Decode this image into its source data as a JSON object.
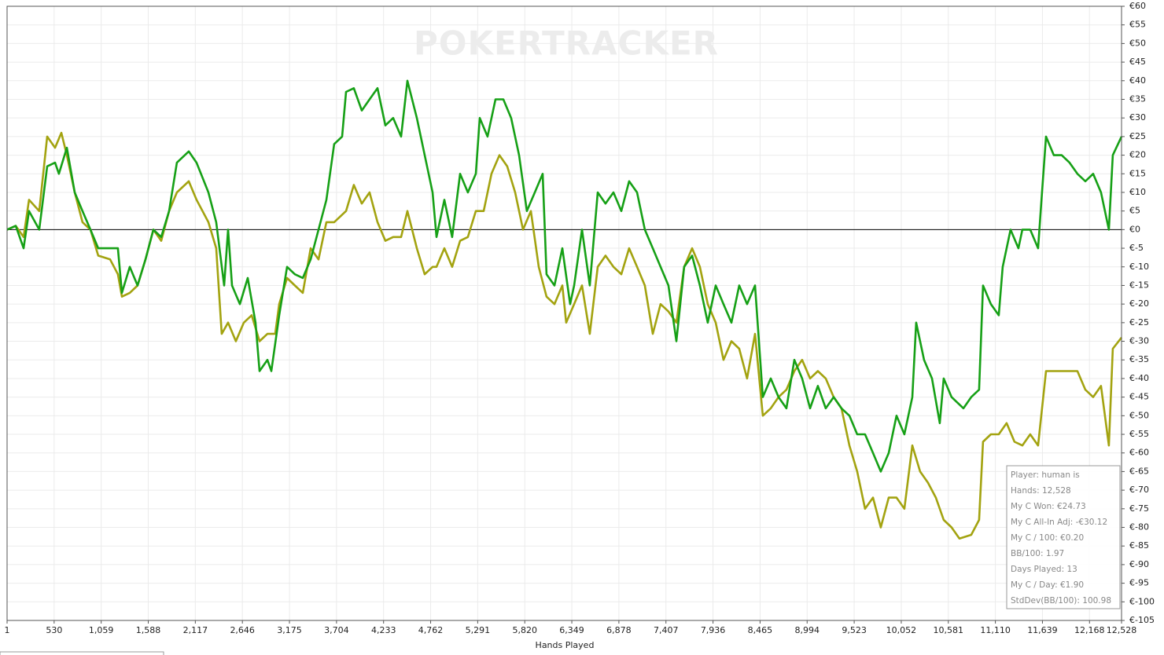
{
  "chart_data": {
    "type": "line",
    "watermark": "POKERTRACKER",
    "x_label": "Hands Played",
    "xlim": [
      1,
      12528
    ],
    "ylim": [
      -105,
      60
    ],
    "grid": true,
    "zero_line": true,
    "xticks": [
      1,
      530,
      {
        "value": 1059,
        "label": "1,059"
      },
      {
        "value": 1588,
        "label": "1,588"
      },
      {
        "value": 2117,
        "label": "2,117"
      },
      {
        "value": 2646,
        "label": "2,646"
      },
      {
        "value": 3175,
        "label": "3,175"
      },
      {
        "value": 3704,
        "label": "3,704"
      },
      {
        "value": 4233,
        "label": "4,233"
      },
      {
        "value": 4762,
        "label": "4,762"
      },
      {
        "value": 5291,
        "label": "5,291"
      },
      {
        "value": 5820,
        "label": "5,820"
      },
      {
        "value": 6349,
        "label": "6,349"
      },
      {
        "value": 6878,
        "label": "6,878"
      },
      {
        "value": 7407,
        "label": "7,407"
      },
      {
        "value": 7936,
        "label": "7,936"
      },
      {
        "value": 8465,
        "label": "8,465"
      },
      {
        "value": 8994,
        "label": "8,994"
      },
      {
        "value": 9523,
        "label": "9,523"
      },
      {
        "value": 10052,
        "label": "10,052"
      },
      {
        "value": 10581,
        "label": "10,581"
      },
      {
        "value": 11110,
        "label": "11,110"
      },
      {
        "value": 11639,
        "label": "11,639"
      },
      {
        "value": 12168,
        "label": "12,168"
      },
      {
        "value": 12528,
        "label": "12,528"
      }
    ],
    "yticks": [
      {
        "value": 60,
        "label": "€60"
      },
      {
        "value": 55,
        "label": "€55"
      },
      {
        "value": 50,
        "label": "€50"
      },
      {
        "value": 45,
        "label": "€45"
      },
      {
        "value": 40,
        "label": "€40"
      },
      {
        "value": 35,
        "label": "€35"
      },
      {
        "value": 30,
        "label": "€30"
      },
      {
        "value": 25,
        "label": "€25"
      },
      {
        "value": 20,
        "label": "€20"
      },
      {
        "value": 15,
        "label": "€15"
      },
      {
        "value": 10,
        "label": "€10"
      },
      {
        "value": 5,
        "label": "€5"
      },
      {
        "value": 0,
        "label": "€0"
      },
      {
        "value": -5,
        "label": "€-5"
      },
      {
        "value": -10,
        "label": "€-10"
      },
      {
        "value": -15,
        "label": "€-15"
      },
      {
        "value": -20,
        "label": "€-20"
      },
      {
        "value": -25,
        "label": "€-25"
      },
      {
        "value": -30,
        "label": "€-30"
      },
      {
        "value": -35,
        "label": "€-35"
      },
      {
        "value": -40,
        "label": "€-40"
      },
      {
        "value": -45,
        "label": "€-45"
      },
      {
        "value": -50,
        "label": "€-50"
      },
      {
        "value": -55,
        "label": "€-55"
      },
      {
        "value": -60,
        "label": "€-60"
      },
      {
        "value": -65,
        "label": "€-65"
      },
      {
        "value": -70,
        "label": "€-70"
      },
      {
        "value": -75,
        "label": "€-75"
      },
      {
        "value": -80,
        "label": "€-80"
      },
      {
        "value": -85,
        "label": "€-85"
      },
      {
        "value": -90,
        "label": "€-90"
      },
      {
        "value": -95,
        "label": "€-95"
      },
      {
        "value": -100,
        "label": "€-100"
      },
      {
        "value": -105,
        "label": "€-105"
      }
    ],
    "series": [
      {
        "color": "#16a016",
        "x": [
          1,
          98,
          187,
          248,
          363,
          452,
          540,
          584,
          673,
          761,
          849,
          938,
          1026,
          1159,
          1247,
          1292,
          1380,
          1468,
          1557,
          1645,
          1734,
          1822,
          1910,
          2043,
          2131,
          2264,
          2352,
          2441,
          2485,
          2529,
          2618,
          2706,
          2794,
          2839,
          2927,
          2971,
          3060,
          3148,
          3236,
          3325,
          3413,
          3502,
          3590,
          3678,
          3767,
          3811,
          3899,
          3988,
          4076,
          4165,
          4253,
          4341,
          4430,
          4501,
          4607,
          4695,
          4784,
          4828,
          4916,
          5004,
          5093,
          5181,
          5270,
          5314,
          5402,
          5491,
          5579,
          5667,
          5756,
          5844,
          5933,
          6021,
          6065,
          6154,
          6242,
          6330,
          6375,
          6463,
          6551,
          6640,
          6728,
          6817,
          6905,
          6993,
          7082,
          7170,
          7259,
          7347,
          7435,
          7524,
          7612,
          7701,
          7789,
          7877,
          7966,
          8054,
          8143,
          8231,
          8319,
          8408,
          8496,
          8585,
          8673,
          8761,
          8850,
          8938,
          9027,
          9115,
          9203,
          9292,
          9380,
          9469,
          9557,
          9645,
          9734,
          9822,
          9911,
          9999,
          10087,
          10176,
          10220,
          10308,
          10397,
          10485,
          10529,
          10618,
          10751,
          10839,
          10927,
          10971,
          11060,
          11148,
          11192,
          11281,
          11369,
          11413,
          11502,
          11590,
          11634,
          11679,
          11767,
          11855,
          11944,
          12032,
          12121,
          12209,
          12297,
          12386,
          12430,
          12528
        ],
        "values": [
          0,
          1,
          -5,
          5,
          0,
          17,
          18,
          15,
          22,
          10,
          5,
          0,
          -5,
          -5,
          -5,
          -17,
          -10,
          -15,
          -8,
          0,
          -2,
          5,
          18,
          21,
          18,
          10,
          2,
          -15,
          0,
          -15,
          -20,
          -13,
          -25,
          -38,
          -35,
          -38,
          -23,
          -10,
          -12,
          -13,
          -8,
          0,
          8,
          23,
          25,
          37,
          38,
          32,
          35,
          38,
          28,
          30,
          25,
          40,
          30,
          20,
          10,
          -2,
          8,
          -2,
          15,
          10,
          15,
          30,
          25,
          35,
          35,
          30,
          20,
          5,
          10,
          15,
          -12,
          -15,
          -5,
          -20,
          -15,
          0,
          -15,
          10,
          7,
          10,
          5,
          13,
          10,
          0,
          -5,
          -10,
          -15,
          -30,
          -10,
          -7,
          -15,
          -25,
          -15,
          -20,
          -25,
          -15,
          -20,
          -15,
          -45,
          -40,
          -45,
          -48,
          -35,
          -40,
          -48,
          -42,
          -48,
          -45,
          -48,
          -50,
          -55,
          -55,
          -60,
          -65,
          -60,
          -50,
          -55,
          -45,
          -25,
          -35,
          -40,
          -52,
          -40,
          -45,
          -48,
          -45,
          -43,
          -15,
          -20,
          -23,
          -10,
          0,
          -5,
          0,
          0,
          -5,
          10,
          25,
          20,
          20,
          18,
          15,
          13,
          15,
          10,
          0,
          20,
          25
        ]
      },
      {
        "color": "#a3a310",
        "x": [
          1,
          98,
          187,
          248,
          363,
          452,
          540,
          611,
          673,
          761,
          849,
          938,
          1026,
          1159,
          1247,
          1292,
          1380,
          1468,
          1557,
          1645,
          1734,
          1822,
          1910,
          2043,
          2131,
          2264,
          2352,
          2414,
          2485,
          2573,
          2662,
          2750,
          2839,
          2927,
          3015,
          3060,
          3148,
          3236,
          3325,
          3413,
          3502,
          3590,
          3678,
          3811,
          3899,
          3988,
          4076,
          4165,
          4253,
          4341,
          4430,
          4501,
          4607,
          4695,
          4784,
          4828,
          4916,
          5004,
          5093,
          5181,
          5270,
          5358,
          5446,
          5535,
          5623,
          5712,
          5800,
          5889,
          5977,
          6065,
          6154,
          6242,
          6286,
          6375,
          6463,
          6551,
          6640,
          6728,
          6817,
          6905,
          6993,
          7082,
          7170,
          7259,
          7347,
          7435,
          7524,
          7612,
          7701,
          7789,
          7877,
          7966,
          8054,
          8143,
          8231,
          8319,
          8408,
          8496,
          8585,
          8673,
          8761,
          8850,
          8938,
          9027,
          9115,
          9203,
          9292,
          9380,
          9469,
          9557,
          9645,
          9734,
          9822,
          9911,
          9999,
          10087,
          10176,
          10264,
          10352,
          10441,
          10529,
          10618,
          10706,
          10839,
          10927,
          10971,
          11060,
          11148,
          11236,
          11325,
          11413,
          11502,
          11590,
          11679,
          11767,
          11855,
          11944,
          12032,
          12121,
          12209,
          12297,
          12386,
          12430,
          12528
        ],
        "values": [
          0,
          1,
          -2,
          8,
          5,
          25,
          22,
          26,
          20,
          10,
          2,
          0,
          -7,
          -8,
          -12,
          -18,
          -17,
          -15,
          -8,
          0,
          -3,
          5,
          10,
          13,
          8,
          2,
          -5,
          -28,
          -25,
          -30,
          -25,
          -23,
          -30,
          -28,
          -28,
          -20,
          -13,
          -15,
          -17,
          -5,
          -8,
          2,
          2,
          5,
          12,
          7,
          10,
          2,
          -3,
          -2,
          -2,
          5,
          -5,
          -12,
          -10,
          -10,
          -5,
          -10,
          -3,
          -2,
          5,
          5,
          15,
          20,
          17,
          10,
          0,
          5,
          -10,
          -18,
          -20,
          -15,
          -25,
          -20,
          -15,
          -28,
          -10,
          -7,
          -10,
          -12,
          -5,
          -10,
          -15,
          -28,
          -20,
          -22,
          -25,
          -10,
          -5,
          -10,
          -20,
          -25,
          -35,
          -30,
          -32,
          -40,
          -28,
          -50,
          -48,
          -45,
          -43,
          -38,
          -35,
          -40,
          -38,
          -40,
          -45,
          -48,
          -58,
          -65,
          -75,
          -72,
          -80,
          -72,
          -72,
          -75,
          -58,
          -65,
          -68,
          -72,
          -78,
          -80,
          -83,
          -82,
          -78,
          -57,
          -55,
          -55,
          -52,
          -57,
          -58,
          -55,
          -58,
          -38,
          -38,
          -38,
          -38,
          -38,
          -43,
          -45,
          -42,
          -58,
          -32,
          -29
        ]
      }
    ],
    "annotations": [
      "Player: human is",
      "Hands: 12,528",
      "My C Won: €24.73",
      "My C All-In Adj: -€30.12",
      "My C / 100: €0.20",
      "BB/100: 1.97",
      "Days Played: 13",
      "My C / Day: €1.90",
      "StdDev(BB/100): 100.98"
    ]
  }
}
